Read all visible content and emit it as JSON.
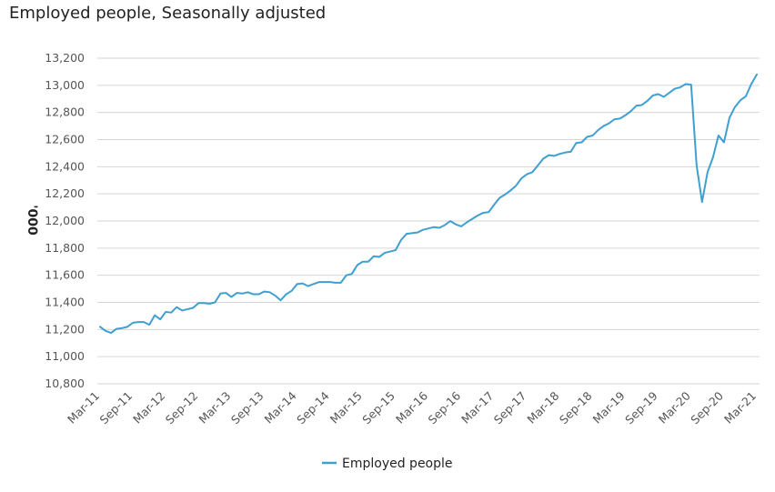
{
  "chart_data": {
    "type": "line",
    "title": "Employed people, Seasonally adjusted",
    "xlabel": "",
    "ylabel": "'000",
    "ylim": [
      10800,
      13200
    ],
    "y_ticks": [
      10800,
      11000,
      11200,
      11400,
      11600,
      11800,
      12000,
      12200,
      12400,
      12600,
      12800,
      13000,
      13200
    ],
    "x_tick_labels": [
      "Mar-11",
      "Sep-11",
      "Mar-12",
      "Sep-12",
      "Mar-13",
      "Sep-13",
      "Mar-14",
      "Sep-14",
      "Mar-15",
      "Sep-15",
      "Mar-16",
      "Sep-16",
      "Mar-17",
      "Sep-17",
      "Mar-18",
      "Sep-18",
      "Mar-19",
      "Sep-19",
      "Mar-20",
      "Sep-20",
      "Mar-21"
    ],
    "x_start": "Mar-11",
    "x_end": "Mar-21",
    "grid": true,
    "legend_position": "bottom-center",
    "series": [
      {
        "name": "Employed people",
        "color": "#3fa0d0",
        "values": [
          11220,
          11190,
          11175,
          11205,
          11210,
          11220,
          11250,
          11255,
          11255,
          11235,
          11305,
          11275,
          11330,
          11325,
          11365,
          11340,
          11350,
          11360,
          11395,
          11395,
          11390,
          11400,
          11465,
          11470,
          11440,
          11470,
          11465,
          11475,
          11460,
          11460,
          11480,
          11475,
          11450,
          11415,
          11460,
          11485,
          11535,
          11540,
          11520,
          11535,
          11550,
          11550,
          11550,
          11545,
          11545,
          11600,
          11610,
          11675,
          11700,
          11700,
          11740,
          11735,
          11765,
          11775,
          11785,
          11860,
          11905,
          11910,
          11915,
          11935,
          11945,
          11955,
          11950,
          11970,
          12000,
          11975,
          11960,
          11990,
          12015,
          12040,
          12060,
          12065,
          12120,
          12170,
          12195,
          12225,
          12260,
          12315,
          12345,
          12360,
          12410,
          12460,
          12485,
          12480,
          12495,
          12505,
          12510,
          12575,
          12580,
          12620,
          12630,
          12670,
          12700,
          12720,
          12750,
          12755,
          12780,
          12810,
          12850,
          12855,
          12885,
          12925,
          12935,
          12915,
          12945,
          12975,
          12985,
          13010,
          13005,
          12410,
          12140,
          12360,
          12470,
          12630,
          12580,
          12760,
          12840,
          12890,
          12920,
          13010,
          13080
        ]
      }
    ]
  }
}
